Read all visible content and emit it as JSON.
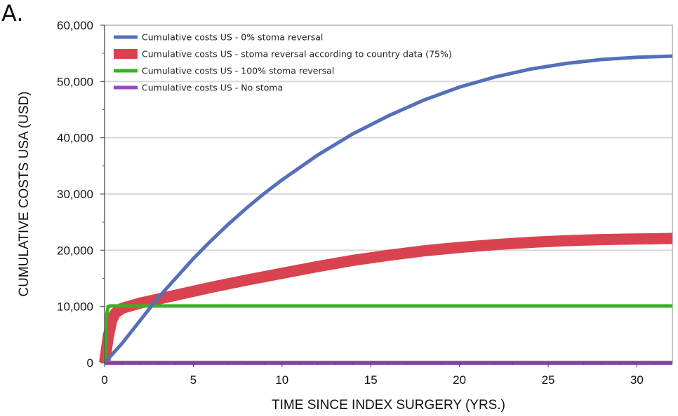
{
  "panel_label": "A.",
  "chart_data": {
    "type": "line",
    "xlabel": "TIME SINCE INDEX SURGERY (YRS.)",
    "ylabel": "CUMULATIVE COSTS USA (USD)",
    "xlim": [
      0,
      32
    ],
    "ylim": [
      0,
      60000
    ],
    "x_ticks": [
      0,
      5,
      10,
      15,
      20,
      25,
      30
    ],
    "x_tick_labels": [
      "0",
      "5",
      "10",
      "15",
      "20",
      "25",
      "30"
    ],
    "y_ticks": [
      0,
      10000,
      20000,
      30000,
      40000,
      50000,
      60000
    ],
    "y_tick_labels": [
      "0",
      "10,000",
      "20,000",
      "30,000",
      "40,000",
      "50,000",
      "60,000"
    ],
    "grid": "horizontal",
    "legend_position": "top-left",
    "series": [
      {
        "name": "Cumulative costs US - 0% stoma reversal",
        "color": "#5470b8",
        "x": [
          0,
          1,
          2,
          3,
          4,
          5,
          6,
          7,
          8,
          9,
          10,
          12,
          14,
          16,
          18,
          20,
          22,
          24,
          26,
          28,
          30,
          32
        ],
        "y": [
          0,
          3500,
          7500,
          11500,
          15000,
          18500,
          21700,
          24700,
          27500,
          30100,
          32500,
          36900,
          40700,
          43900,
          46700,
          49000,
          50800,
          52200,
          53200,
          53900,
          54300,
          54500
        ]
      },
      {
        "name": "Cumulative costs US - stoma reversal according to country data (75%)",
        "color": "#d9434f",
        "x": [
          0,
          0.2,
          0.4,
          0.6,
          1,
          2,
          3,
          4,
          5,
          6,
          8,
          10,
          12,
          14,
          16,
          18,
          20,
          22,
          24,
          26,
          28,
          30,
          32
        ],
        "y": [
          0,
          4500,
          7500,
          8800,
          9700,
          10600,
          11300,
          12000,
          12700,
          13400,
          14700,
          15900,
          17100,
          18200,
          19100,
          19900,
          20500,
          21000,
          21400,
          21700,
          21900,
          22000,
          22100
        ]
      },
      {
        "name": "Cumulative costs US - 100% stoma reversal",
        "color": "#3ab024",
        "x": [
          0,
          0.1,
          0.2,
          0.3,
          1,
          5,
          10,
          15,
          20,
          25,
          30,
          32
        ],
        "y": [
          0,
          8000,
          10000,
          10100,
          10100,
          10100,
          10100,
          10100,
          10100,
          10100,
          10100,
          10100
        ]
      },
      {
        "name": "Cumulative costs US - No stoma",
        "color": "#9b45c0",
        "x": [
          0,
          32
        ],
        "y": [
          0,
          0
        ]
      }
    ]
  }
}
